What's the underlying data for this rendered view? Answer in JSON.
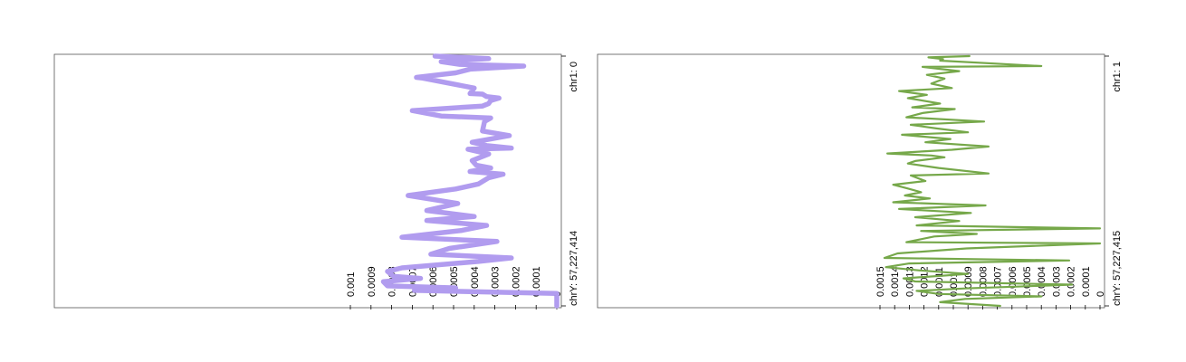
{
  "chart_data": [
    {
      "type": "line",
      "orientation": "vertical-genome",
      "color": "#b19cef",
      "line_style": "thick",
      "genome_start_label": "chr1: 0",
      "genome_end_label": "chrY: 57,227,414",
      "value_ticks": [
        "0.001",
        "0.0009",
        "0.0008",
        "0.0007",
        "0.0006",
        "0.0005",
        "0.0004",
        "0.0003",
        "0.0002",
        "0.0001",
        "0"
      ],
      "xlim": [
        0,
        0.001
      ],
      "points": [
        [
          0.00059,
          0.0
        ],
        [
          0.00033,
          0.01
        ],
        [
          0.00056,
          0.022
        ],
        [
          0.00047,
          0.033
        ],
        [
          0.00016,
          0.04
        ],
        [
          0.00042,
          0.052
        ],
        [
          0.00049,
          0.067
        ],
        [
          0.00068,
          0.085
        ],
        [
          0.00065,
          0.088
        ],
        [
          0.0004,
          0.128
        ],
        [
          0.00042,
          0.15
        ],
        [
          0.00036,
          0.152
        ],
        [
          0.00034,
          0.162
        ],
        [
          0.00028,
          0.168
        ],
        [
          0.00032,
          0.178
        ],
        [
          0.00033,
          0.19
        ],
        [
          0.00036,
          0.2
        ],
        [
          0.0007,
          0.218
        ],
        [
          0.00056,
          0.24
        ],
        [
          0.00032,
          0.248
        ],
        [
          0.00035,
          0.262
        ],
        [
          0.00036,
          0.3
        ],
        [
          0.00023,
          0.318
        ],
        [
          0.00032,
          0.332
        ],
        [
          0.00041,
          0.345
        ],
        [
          0.00034,
          0.358
        ],
        [
          0.00022,
          0.368
        ],
        [
          0.00043,
          0.373
        ],
        [
          0.00033,
          0.392
        ],
        [
          0.00041,
          0.418
        ],
        [
          0.00039,
          0.437
        ],
        [
          0.00032,
          0.448
        ],
        [
          0.00042,
          0.462
        ],
        [
          0.00026,
          0.473
        ],
        [
          0.00033,
          0.487
        ],
        [
          0.00038,
          0.512
        ],
        [
          0.00049,
          0.532
        ],
        [
          0.00072,
          0.558
        ],
        [
          0.00048,
          0.59
        ],
        [
          0.00063,
          0.618
        ],
        [
          0.0004,
          0.642
        ],
        [
          0.00063,
          0.658
        ],
        [
          0.00034,
          0.678
        ],
        [
          0.00046,
          0.698
        ],
        [
          0.00075,
          0.725
        ],
        [
          0.00029,
          0.742
        ],
        [
          0.00052,
          0.77
        ],
        [
          0.00061,
          0.793
        ],
        [
          0.00022,
          0.808
        ],
        [
          0.00038,
          0.822
        ],
        [
          0.00075,
          0.848
        ],
        [
          0.00082,
          0.862
        ],
        [
          0.00079,
          0.882
        ],
        [
          0.00066,
          0.89
        ],
        [
          0.00084,
          0.903
        ],
        [
          0.00082,
          0.92
        ],
        [
          0.00049,
          0.928
        ],
        [
          0.00069,
          0.938
        ],
        [
          0.0,
          0.95
        ],
        [
          0.0,
          1.0
        ]
      ]
    },
    {
      "type": "line",
      "orientation": "vertical-genome",
      "color": "#76a84a",
      "line_style": "thin",
      "genome_start_label": "chr1: 1",
      "genome_end_label": "chrY: 57,227,415",
      "value_ticks": [
        "0.0015",
        "0.0014",
        "0.0013",
        "0.0012",
        "0.0011",
        "0.001",
        "0.0009",
        "0.0008",
        "0.0007",
        "0.0006",
        "0.0005",
        "0.0004",
        "0.0003",
        "0.0002",
        "0.0001",
        "0"
      ],
      "xlim": [
        0,
        0.0015
      ],
      "points": [
        [
          0.00089,
          0.0
        ],
        [
          0.00117,
          0.005
        ],
        [
          0.00107,
          0.012
        ],
        [
          0.00109,
          0.018
        ],
        [
          0.0004,
          0.04
        ],
        [
          0.00121,
          0.043
        ],
        [
          0.00096,
          0.06
        ],
        [
          0.00118,
          0.075
        ],
        [
          0.00106,
          0.09
        ],
        [
          0.00115,
          0.11
        ],
        [
          0.00101,
          0.128
        ],
        [
          0.00137,
          0.14
        ],
        [
          0.00118,
          0.155
        ],
        [
          0.00131,
          0.168
        ],
        [
          0.00109,
          0.19
        ],
        [
          0.00128,
          0.205
        ],
        [
          0.00099,
          0.212
        ],
        [
          0.00121,
          0.228
        ],
        [
          0.00132,
          0.245
        ],
        [
          0.00079,
          0.262
        ],
        [
          0.00129,
          0.275
        ],
        [
          0.00111,
          0.29
        ],
        [
          0.0009,
          0.305
        ],
        [
          0.00135,
          0.315
        ],
        [
          0.00102,
          0.332
        ],
        [
          0.00119,
          0.345
        ],
        [
          0.00076,
          0.362
        ],
        [
          0.00101,
          0.375
        ],
        [
          0.00145,
          0.39
        ],
        [
          0.00115,
          0.398
        ],
        [
          0.00106,
          0.405
        ],
        [
          0.00126,
          0.42
        ],
        [
          0.00131,
          0.43
        ],
        [
          0.0011,
          0.448
        ],
        [
          0.00076,
          0.47
        ],
        [
          0.00129,
          0.478
        ],
        [
          0.00119,
          0.5
        ],
        [
          0.00141,
          0.515
        ],
        [
          0.00131,
          0.53
        ],
        [
          0.00122,
          0.545
        ],
        [
          0.00133,
          0.558
        ],
        [
          0.00116,
          0.57
        ],
        [
          0.00141,
          0.585
        ],
        [
          0.00078,
          0.598
        ],
        [
          0.00137,
          0.612
        ],
        [
          0.00088,
          0.628
        ],
        [
          0.00126,
          0.645
        ],
        [
          0.00096,
          0.66
        ],
        [
          0.00125,
          0.678
        ],
        [
          0.0,
          0.69
        ],
        [
          0.00122,
          0.7
        ],
        [
          0.00084,
          0.712
        ],
        [
          0.00113,
          0.722
        ],
        [
          0.00132,
          0.745
        ],
        [
          0.0,
          0.75
        ],
        [
          0.00091,
          0.77
        ],
        [
          0.00138,
          0.79
        ],
        [
          0.00147,
          0.808
        ],
        [
          0.00021,
          0.818
        ],
        [
          0.0013,
          0.83
        ],
        [
          0.00146,
          0.845
        ],
        [
          0.00123,
          0.858
        ],
        [
          0.0009,
          0.872
        ],
        [
          0.00134,
          0.89
        ],
        [
          0.00126,
          0.902
        ],
        [
          0.00019,
          0.915
        ],
        [
          0.00092,
          0.93
        ],
        [
          0.00125,
          0.94
        ],
        [
          0.0011,
          0.952
        ],
        [
          0.0004,
          0.962
        ],
        [
          0.00092,
          0.972
        ],
        [
          0.00109,
          0.985
        ],
        [
          0.00068,
          1.0
        ]
      ]
    }
  ]
}
